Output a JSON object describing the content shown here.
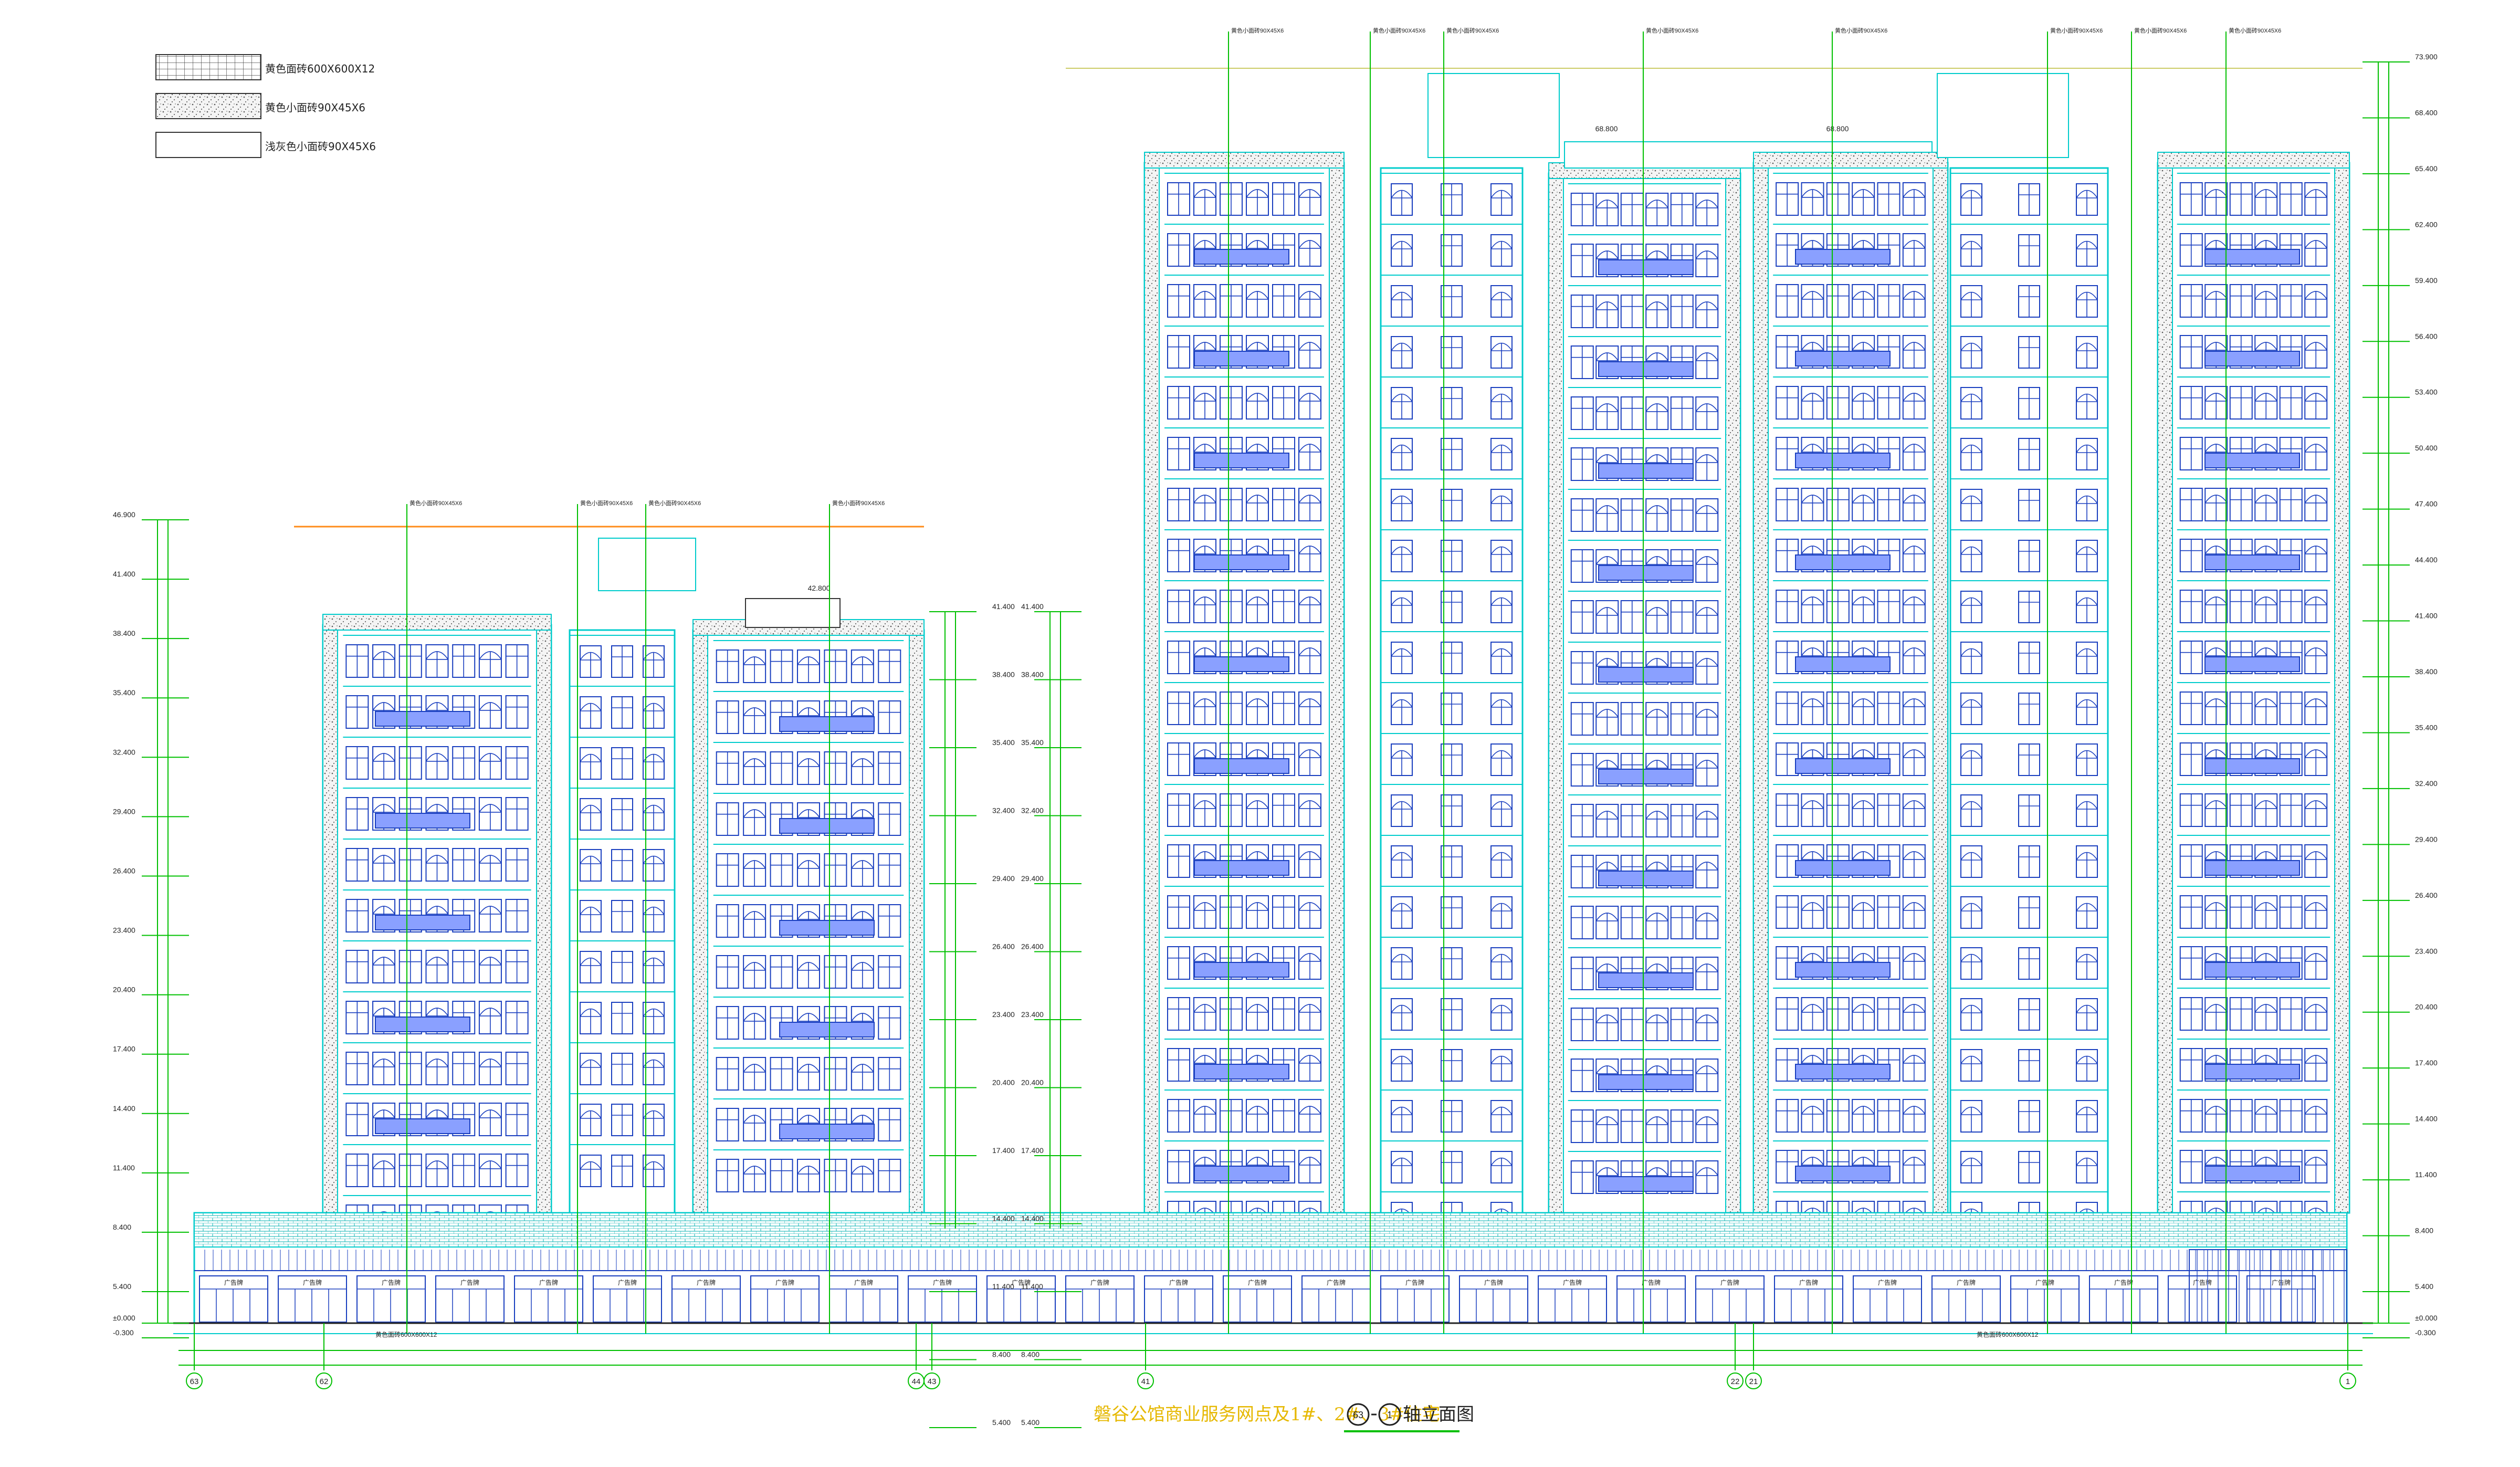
{
  "legend": [
    {
      "label": "黄色面砖600X600X12",
      "pattern": "grid"
    },
    {
      "label": "黄色小面砖90X45X6",
      "pattern": "dots"
    },
    {
      "label": "浅灰色小面砖90X45X6",
      "pattern": "plain"
    }
  ],
  "title": "磐谷公馆商业服务网点及1#、2#、3#住宅",
  "title_axis_from": "63",
  "title_axis_to": "1",
  "title_suffix": "轴立面图",
  "axes": [
    "63",
    "62",
    "44",
    "43",
    "41",
    "22",
    "21",
    "1"
  ],
  "elev_left": [
    "46.900",
    "41.400",
    "38.400",
    "35.400",
    "32.400",
    "29.400",
    "26.400",
    "23.400",
    "20.400",
    "17.400",
    "14.400",
    "11.400",
    "8.400",
    "5.400",
    "±0.000",
    "-0.300"
  ],
  "elev_right": [
    "73.900",
    "68.400",
    "65.400",
    "62.400",
    "59.400",
    "56.400",
    "53.400",
    "50.400",
    "47.400",
    "44.400",
    "41.400",
    "38.400",
    "35.400",
    "32.400",
    "29.400",
    "26.400",
    "23.400",
    "20.400",
    "17.400",
    "14.400",
    "11.400",
    "8.400",
    "5.400",
    "±0.000",
    "-0.300"
  ],
  "elev_mid": [
    "41.400",
    "38.400",
    "35.400",
    "32.400",
    "29.400",
    "26.400",
    "23.400",
    "20.400",
    "17.400",
    "14.400",
    "11.400",
    "8.400",
    "5.400"
  ],
  "roof_marks": [
    "42.800",
    "68.800",
    "68.800"
  ],
  "shop_sign": "广告牌",
  "top_note": "黄色小面砖90X45X6",
  "base_note": "黄色面砖600X600X12",
  "colors": {
    "cyan": "#00cccc",
    "blue": "#1a3fbf",
    "green": "#00c000",
    "orange": "#ff8c1a",
    "balcony": "#8aa0ff",
    "title": "#e6b800",
    "dark": "#222222"
  }
}
